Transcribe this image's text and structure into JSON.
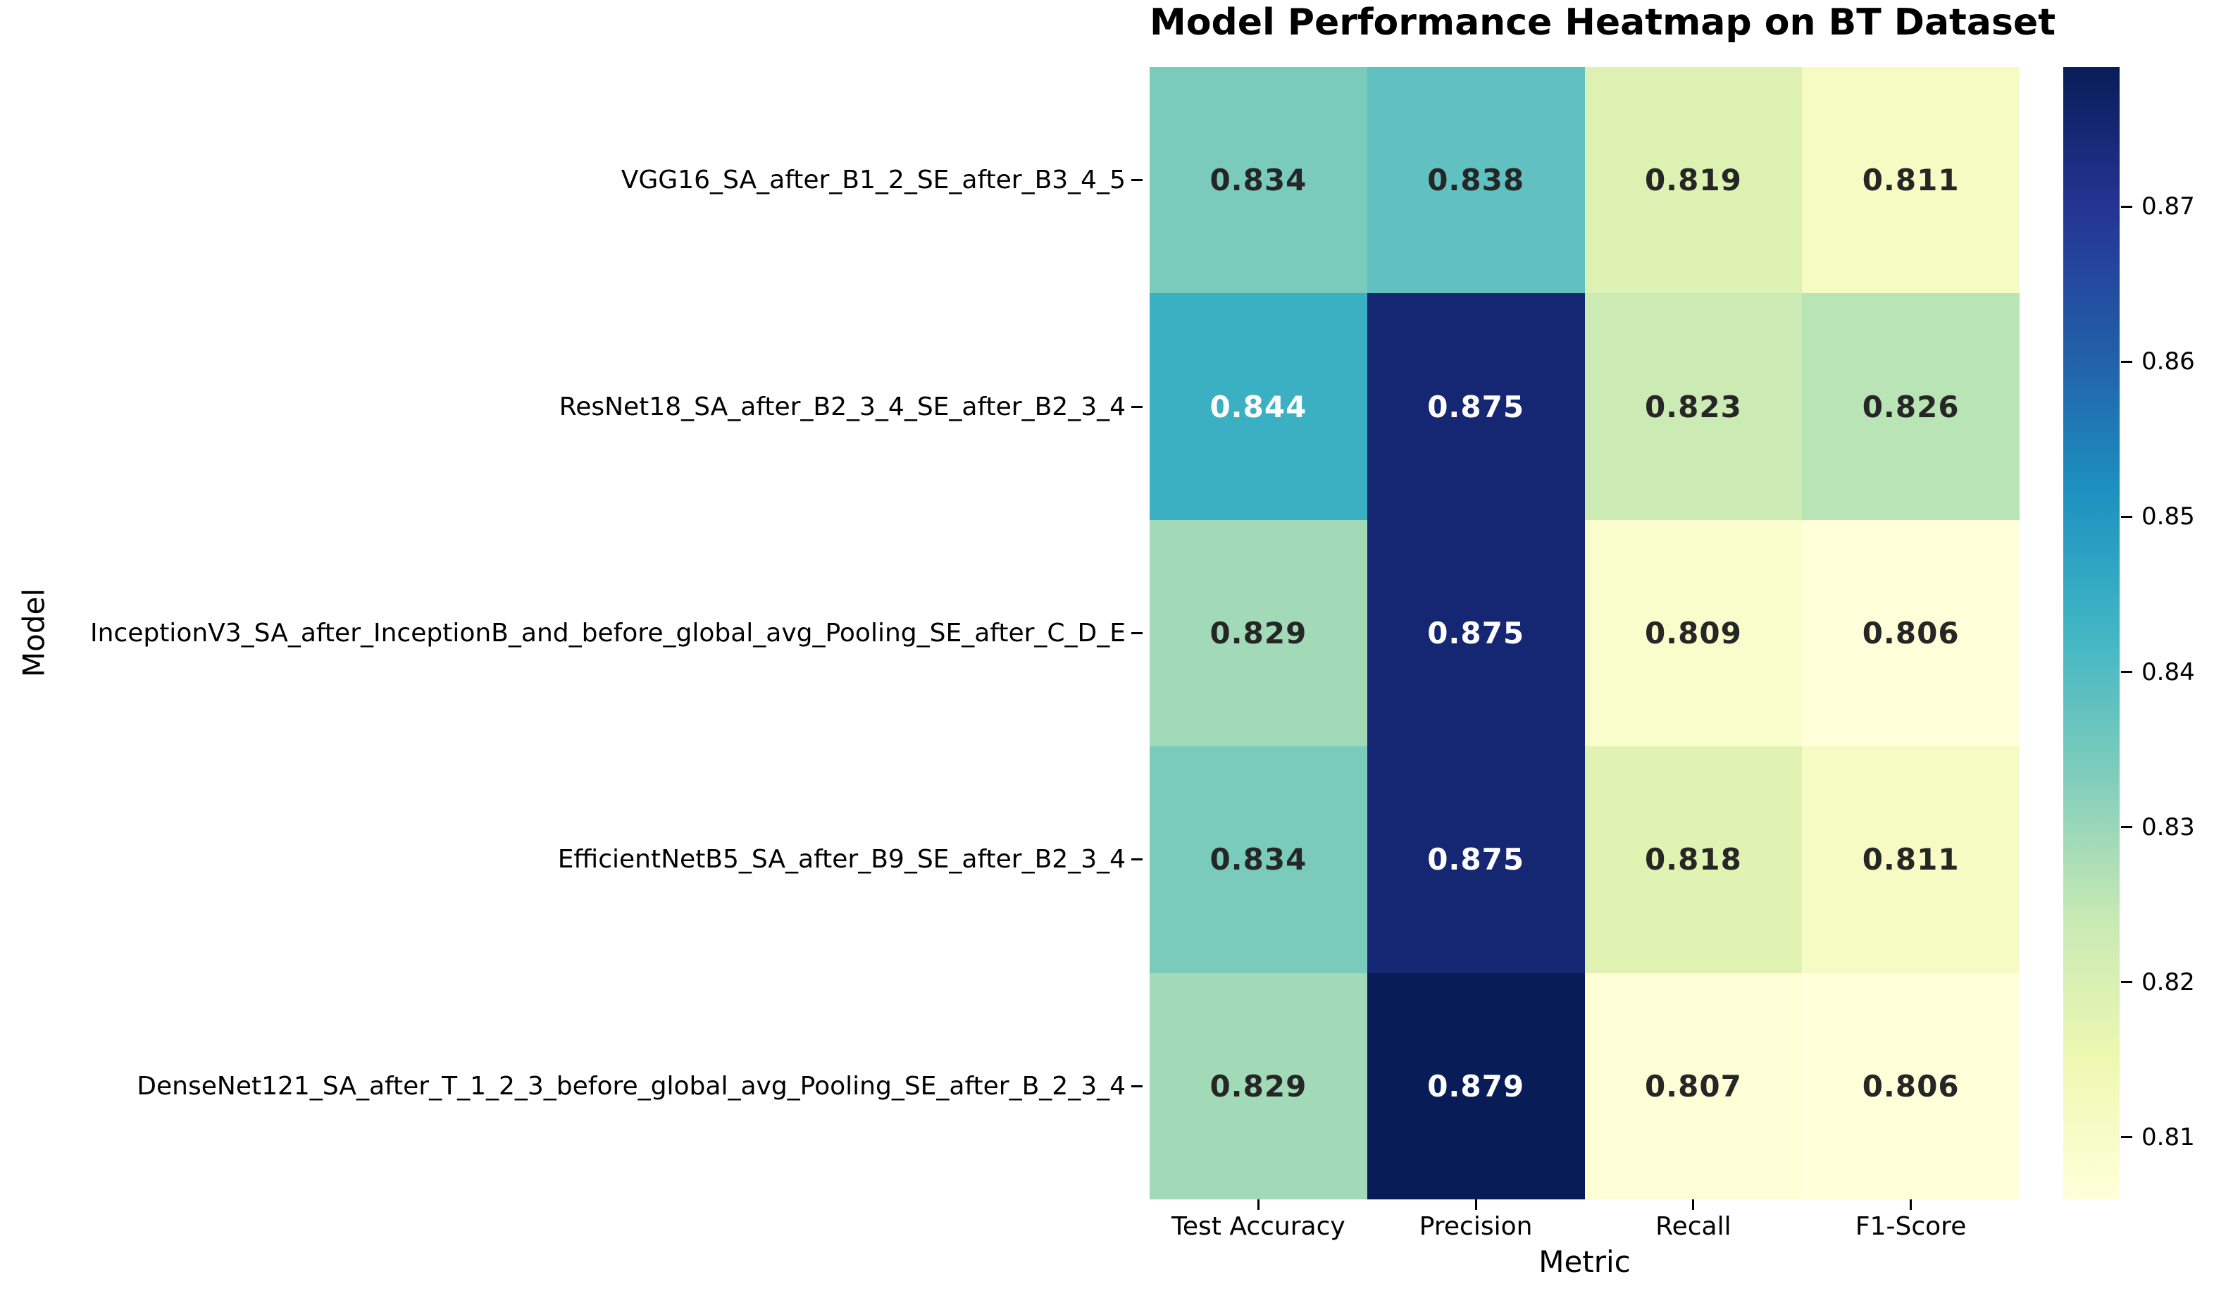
{
  "chart_data": {
    "type": "heatmap",
    "title": "Model Performance Heatmap on BT Dataset",
    "xlabel": "Metric",
    "ylabel": "Model",
    "columns": [
      "Test Accuracy",
      "Precision",
      "Recall",
      "F1-Score"
    ],
    "rows": [
      "VGG16_SA_after_B1_2_SE_after_B3_4_5",
      "ResNet18_SA_after_B2_3_4_SE_after_B2_3_4",
      "InceptionV3_SA_after_InceptionB_and_before_global_avg_Pooling_SE_after_C_D_E",
      "EfficientNetB5_SA_after_B9_SE_after_B2_3_4",
      "DenseNet121_SA_after_T_1_2_3_before_global_avg_Pooling_SE_after_B_2_3_4"
    ],
    "values": [
      [
        0.834,
        0.838,
        0.819,
        0.811
      ],
      [
        0.844,
        0.875,
        0.823,
        0.826
      ],
      [
        0.829,
        0.875,
        0.809,
        0.806
      ],
      [
        0.834,
        0.875,
        0.818,
        0.811
      ],
      [
        0.829,
        0.879,
        0.807,
        0.806
      ]
    ],
    "value_decimals": 3,
    "vmin": 0.806,
    "vmax": 0.879,
    "colorbar_ticks": [
      0.87,
      0.86,
      0.85,
      0.84,
      0.83,
      0.82,
      0.81
    ],
    "colorbar_tick_decimals": 2,
    "colormap": {
      "name": "YlGnBu",
      "stops": [
        "#ffffd9",
        "#edf8b1",
        "#c7e9b4",
        "#7fcdbb",
        "#41b6c4",
        "#1d91c0",
        "#225ea8",
        "#253494",
        "#081d58"
      ]
    },
    "annotation_colors": {
      "dark": "#262626",
      "light": "#ffffff"
    },
    "grid": false,
    "legend_position": "right-colorbar"
  }
}
